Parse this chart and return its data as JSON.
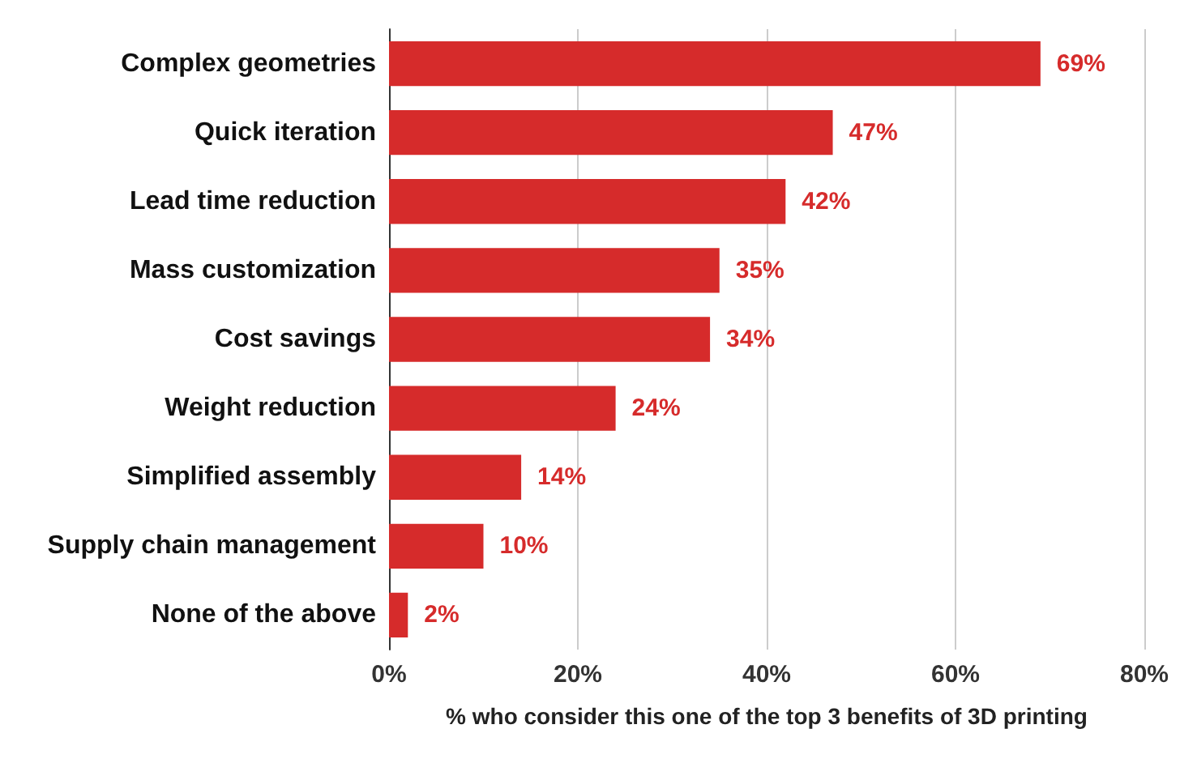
{
  "chart_data": {
    "type": "bar",
    "orientation": "horizontal",
    "xlabel": "% who consider this one of the top 3 benefits of 3D printing",
    "categories": [
      "Complex geometries",
      "Quick iteration",
      "Lead time reduction",
      "Mass customization",
      "Cost savings",
      "Weight reduction",
      "Simplified assembly",
      "Supply chain management",
      "None of the above"
    ],
    "values": [
      69,
      47,
      42,
      35,
      34,
      24,
      14,
      10,
      2
    ],
    "value_labels": [
      "69%",
      "47%",
      "42%",
      "35%",
      "34%",
      "24%",
      "14%",
      "10%",
      "2%"
    ],
    "color": "#d62b2b",
    "xlim": [
      0,
      80
    ],
    "xticks": [
      {
        "value": 0,
        "label": "0%"
      },
      {
        "value": 20,
        "label": "20%"
      },
      {
        "value": 40,
        "label": "40%"
      },
      {
        "value": 60,
        "label": "60%"
      },
      {
        "value": 80,
        "label": "80%"
      }
    ],
    "grid": "x"
  }
}
